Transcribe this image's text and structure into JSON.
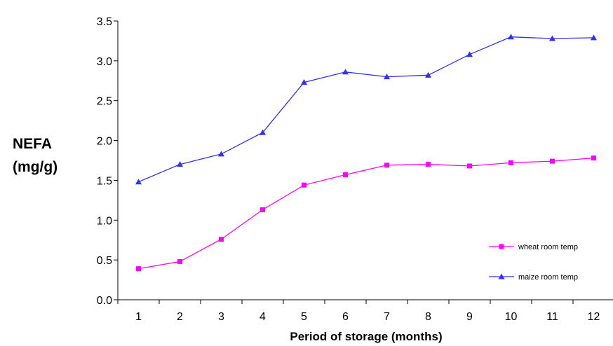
{
  "chart_data": {
    "type": "line",
    "xlabel": "Period of storage (months)",
    "ylabel": [
      "NEFA",
      "(mg/g)"
    ],
    "x": [
      1,
      2,
      3,
      4,
      5,
      6,
      7,
      8,
      9,
      10,
      11,
      12
    ],
    "ylim": [
      0,
      3.5
    ],
    "yticks": [
      "0.0",
      "0.5",
      "1.0",
      "1.5",
      "2.0",
      "2.5",
      "3.0",
      "3.5"
    ],
    "grid": false,
    "legend_position": "bottom-right",
    "series": [
      {
        "name": "wheat room temp",
        "color": "#ff00ff",
        "marker": "square",
        "values": [
          0.39,
          0.48,
          0.76,
          1.13,
          1.44,
          1.57,
          1.69,
          1.7,
          1.68,
          1.72,
          1.74,
          1.78
        ]
      },
      {
        "name": "maize room temp",
        "color": "#3030ff",
        "marker": "triangle",
        "values": [
          1.48,
          1.7,
          1.83,
          2.1,
          2.73,
          2.86,
          2.8,
          2.82,
          3.08,
          3.3,
          3.28,
          3.29
        ]
      }
    ]
  }
}
